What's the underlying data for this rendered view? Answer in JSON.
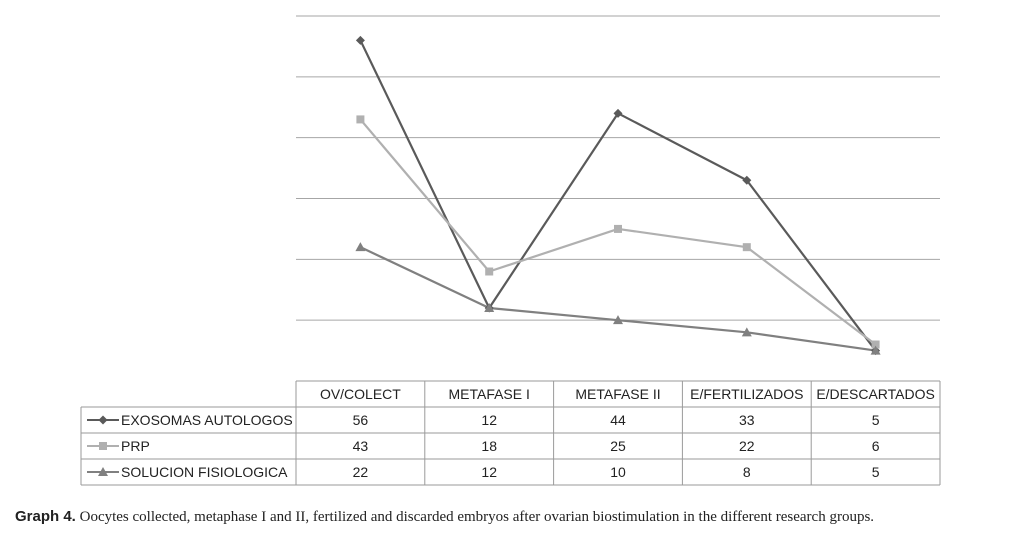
{
  "chart_data": {
    "type": "line",
    "title": "",
    "xlabel": "",
    "ylabel": "",
    "ylim": [
      0,
      60
    ],
    "grid": true,
    "legend": "table-left",
    "categories": [
      "OV/COLECT",
      "METAFASE I",
      "METAFASE II",
      "E/FERTILIZADOS",
      "E/DESCARTADOS"
    ],
    "series": [
      {
        "name": "EXOSOMAS AUTOLOGOS",
        "values": [
          56,
          12,
          44,
          33,
          5
        ],
        "color": "#5a5a5a",
        "marker": "diamond"
      },
      {
        "name": "PRP",
        "values": [
          43,
          18,
          25,
          22,
          6
        ],
        "color": "#b0b0b0",
        "marker": "square"
      },
      {
        "name": "SOLUCION FISIOLOGICA",
        "values": [
          22,
          12,
          10,
          8,
          5
        ],
        "color": "#808080",
        "marker": "triangle"
      }
    ]
  },
  "caption": {
    "label": "Graph 4.",
    "text": "Oocytes collected, metaphase I and II, fertilized and discarded embryos after ovarian biostimulation in the different research groups."
  }
}
